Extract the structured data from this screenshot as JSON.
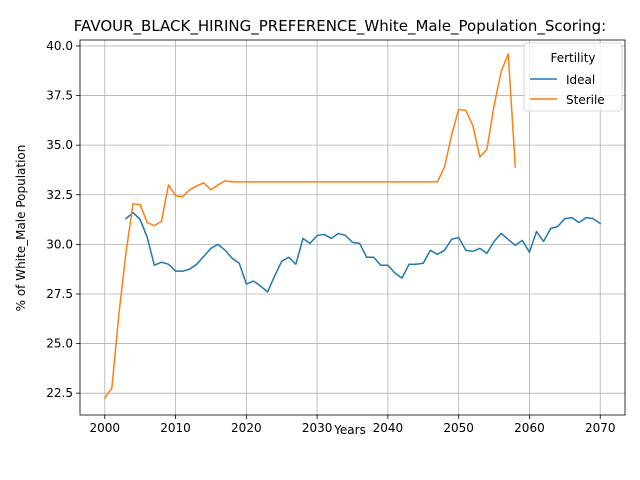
{
  "chart_data": {
    "type": "line",
    "title": "FAVOUR_BLACK_HIRING_PREFERENCE_White_Male_Population_Scoring:",
    "xlabel": "Years",
    "ylabel": "% of White_Male Population",
    "xlim": [
      1996.5,
      2073.5
    ],
    "ylim": [
      21.4,
      40.3
    ],
    "xticks": [
      2000,
      2010,
      2020,
      2030,
      2040,
      2050,
      2060,
      2070
    ],
    "yticks": [
      22.5,
      25.0,
      27.5,
      30.0,
      32.5,
      35.0,
      37.5,
      40.0
    ],
    "grid": true,
    "legend": {
      "title": "Fertility",
      "placement": "top-right"
    },
    "series": [
      {
        "name": "Ideal",
        "color": "#1f77b4",
        "x": [
          2003,
          2004,
          2005,
          2006,
          2007,
          2008,
          2009,
          2010,
          2011,
          2012,
          2013,
          2014,
          2015,
          2016,
          2017,
          2018,
          2019,
          2020,
          2021,
          2022,
          2023,
          2024,
          2025,
          2026,
          2027,
          2028,
          2029,
          2030,
          2031,
          2032,
          2033,
          2034,
          2035,
          2036,
          2037,
          2038,
          2039,
          2040,
          2041,
          2042,
          2043,
          2044,
          2045,
          2046,
          2047,
          2048,
          2049,
          2050,
          2051,
          2052,
          2053,
          2054,
          2055,
          2056,
          2057,
          2058,
          2059,
          2060,
          2061,
          2062,
          2063,
          2064,
          2065,
          2066,
          2067,
          2068,
          2069,
          2070
        ],
        "values": [
          31.3,
          31.6,
          31.25,
          30.35,
          28.95,
          29.1,
          29.0,
          28.65,
          28.65,
          28.75,
          29.0,
          29.4,
          29.8,
          30.0,
          29.7,
          29.3,
          29.05,
          28.0,
          28.15,
          27.9,
          27.6,
          28.4,
          29.15,
          29.35,
          29.0,
          30.3,
          30.05,
          30.45,
          30.5,
          30.3,
          30.55,
          30.45,
          30.1,
          30.05,
          29.35,
          29.35,
          28.95,
          28.95,
          28.55,
          28.3,
          29.0,
          29.0,
          29.05,
          29.7,
          29.5,
          29.7,
          30.25,
          30.35,
          29.7,
          29.65,
          29.8,
          29.55,
          30.15,
          30.55,
          30.25,
          29.95,
          30.2,
          29.6,
          30.65,
          30.15,
          30.8,
          30.9,
          31.3,
          31.35,
          31.1,
          31.35,
          31.3,
          31.05
        ]
      },
      {
        "name": "Sterile",
        "color": "#ff7f0e",
        "x": [
          2000,
          2001,
          2002,
          2003,
          2004,
          2005,
          2006,
          2007,
          2008,
          2009,
          2010,
          2011,
          2012,
          2013,
          2014,
          2015,
          2016,
          2017,
          2018,
          2019,
          2020,
          2021,
          2022,
          2023,
          2024,
          2025,
          2026,
          2027,
          2028,
          2029,
          2030,
          2031,
          2032,
          2033,
          2034,
          2035,
          2036,
          2037,
          2038,
          2039,
          2040,
          2041,
          2042,
          2043,
          2044,
          2045,
          2046,
          2047,
          2048,
          2049,
          2050,
          2051,
          2052,
          2053,
          2054,
          2055,
          2056,
          2057,
          2058
        ],
        "values": [
          22.25,
          22.75,
          26.5,
          29.6,
          32.05,
          32.0,
          31.1,
          30.95,
          31.15,
          33.0,
          32.45,
          32.4,
          32.75,
          32.95,
          33.1,
          32.75,
          33.0,
          33.2,
          33.15,
          33.15,
          33.15,
          33.15,
          33.15,
          33.15,
          33.15,
          33.15,
          33.15,
          33.15,
          33.15,
          33.15,
          33.15,
          33.15,
          33.15,
          33.15,
          33.15,
          33.15,
          33.15,
          33.15,
          33.15,
          33.15,
          33.15,
          33.15,
          33.15,
          33.15,
          33.15,
          33.15,
          33.15,
          33.15,
          33.9,
          35.5,
          36.8,
          36.75,
          36.0,
          34.4,
          34.8,
          37.0,
          38.7,
          39.6,
          33.9
        ]
      }
    ]
  }
}
